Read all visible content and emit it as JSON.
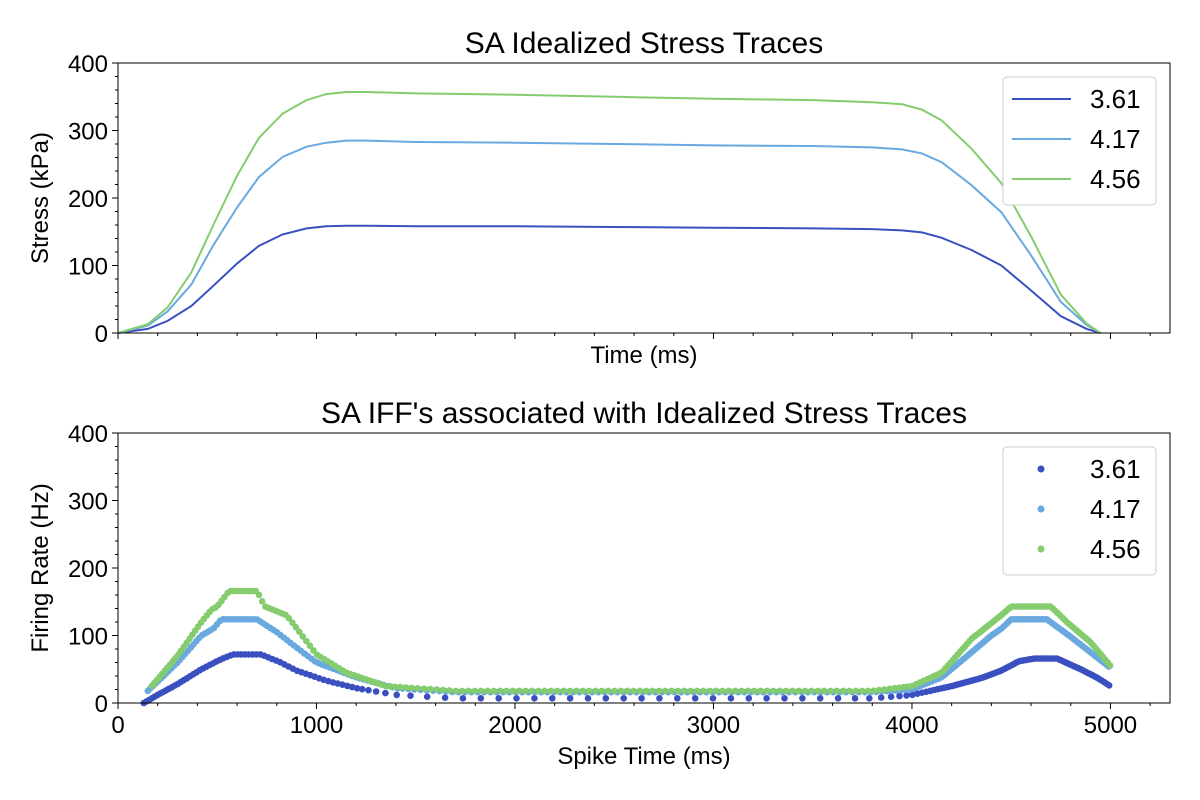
{
  "colors": {
    "s361": "#3a4fc0",
    "s417": "#6aa8e0",
    "s456": "#85cc6f"
  },
  "chart_data": [
    {
      "type": "line",
      "title": "SA Idealized Stress Traces",
      "xlabel": "Time (ms)",
      "ylabel": "Stress (kPa)",
      "xlim": [
        0,
        5300
      ],
      "ylim": [
        0,
        400
      ],
      "yticks": [
        "0",
        "100",
        "200",
        "300",
        "400"
      ],
      "x_tick_labels_shown": false,
      "legend_position": "top-right",
      "x": [
        0,
        150,
        250,
        370,
        480,
        600,
        710,
        830,
        950,
        1050,
        1150,
        1250,
        1500,
        2000,
        2500,
        3000,
        3500,
        3800,
        3950,
        4050,
        4150,
        4300,
        4450,
        4600,
        4750,
        4880,
        4950
      ],
      "series": [
        {
          "name": "3.61",
          "values": [
            0,
            6,
            18,
            40,
            70,
            103,
            129,
            146,
            155,
            158,
            159,
            159,
            158,
            158,
            157,
            156,
            155,
            154,
            152,
            149,
            141,
            123,
            100,
            63,
            25,
            6,
            0
          ]
        },
        {
          "name": "4.17",
          "values": [
            0,
            11,
            32,
            72,
            130,
            186,
            231,
            261,
            276,
            282,
            285,
            285,
            283,
            282,
            280,
            278,
            277,
            275,
            272,
            266,
            253,
            219,
            179,
            115,
            46,
            12,
            0
          ]
        },
        {
          "name": "4.56",
          "values": [
            0,
            13,
            38,
            90,
            160,
            233,
            289,
            325,
            345,
            354,
            357,
            357,
            355,
            353,
            350,
            347,
            345,
            342,
            339,
            331,
            315,
            273,
            222,
            143,
            57,
            14,
            0
          ]
        }
      ]
    },
    {
      "type": "scatter",
      "title": "SA IFF's associated with Idealized Stress Traces",
      "xlabel": "Spike Time (ms)",
      "ylabel": "Firing Rate (Hz)",
      "xlim": [
        0,
        5300
      ],
      "ylim": [
        0,
        400
      ],
      "xticks": [
        "0",
        "1000",
        "2000",
        "3000",
        "4000",
        "5000"
      ],
      "yticks": [
        "0",
        "100",
        "200",
        "300",
        "400"
      ],
      "legend_position": "top-right",
      "series": [
        {
          "name": "3.61",
          "curve": [
            [
              130,
              0
            ],
            [
              200,
              12
            ],
            [
              300,
              28
            ],
            [
              420,
              50
            ],
            [
              520,
              65
            ],
            [
              580,
              72
            ],
            [
              720,
              72
            ],
            [
              820,
              60
            ],
            [
              900,
              48
            ],
            [
              1050,
              33
            ],
            [
              1200,
              22
            ],
            [
              1400,
              12
            ],
            [
              1700,
              7
            ],
            [
              3800,
              7
            ],
            [
              4000,
              12
            ],
            [
              4200,
              25
            ],
            [
              4350,
              37
            ],
            [
              4450,
              48
            ],
            [
              4540,
              62
            ],
            [
              4620,
              66
            ],
            [
              4730,
              66
            ],
            [
              4850,
              50
            ],
            [
              4930,
              38
            ],
            [
              5000,
              25
            ]
          ],
          "spacing": [
            [
              0,
              12
            ],
            [
              1200,
              25
            ],
            [
              1500,
              90
            ],
            [
              3600,
              90
            ],
            [
              4000,
              25
            ],
            [
              4200,
              12
            ],
            [
              5000,
              12
            ]
          ]
        },
        {
          "name": "4.17",
          "curve": [
            [
              150,
              18
            ],
            [
              300,
              60
            ],
            [
              420,
              100
            ],
            [
              480,
              110
            ],
            [
              520,
              124
            ],
            [
              700,
              124
            ],
            [
              800,
              105
            ],
            [
              900,
              82
            ],
            [
              1000,
              60
            ],
            [
              1200,
              38
            ],
            [
              1400,
              22
            ],
            [
              1700,
              16
            ],
            [
              3800,
              16
            ],
            [
              4000,
              20
            ],
            [
              4150,
              38
            ],
            [
              4300,
              75
            ],
            [
              4400,
              100
            ],
            [
              4450,
              110
            ],
            [
              4500,
              124
            ],
            [
              4680,
              124
            ],
            [
              4800,
              98
            ],
            [
              4900,
              75
            ],
            [
              5000,
              52
            ]
          ],
          "spacing": [
            [
              0,
              12
            ],
            [
              1300,
              20
            ],
            [
              1500,
              32
            ],
            [
              3700,
              32
            ],
            [
              4000,
              20
            ],
            [
              4200,
              12
            ],
            [
              5000,
              12
            ]
          ]
        },
        {
          "name": "4.56",
          "curve": [
            [
              170,
              25
            ],
            [
              300,
              70
            ],
            [
              420,
              120
            ],
            [
              470,
              138
            ],
            [
              500,
              143
            ],
            [
              560,
              166
            ],
            [
              700,
              166
            ],
            [
              740,
              143
            ],
            [
              850,
              130
            ],
            [
              1000,
              72
            ],
            [
              1150,
              45
            ],
            [
              1350,
              25
            ],
            [
              1700,
              18
            ],
            [
              3800,
              18
            ],
            [
              4000,
              25
            ],
            [
              4150,
              45
            ],
            [
              4300,
              95
            ],
            [
              4450,
              130
            ],
            [
              4500,
              143
            ],
            [
              4700,
              143
            ],
            [
              4780,
              120
            ],
            [
              4900,
              90
            ],
            [
              5000,
              55
            ]
          ],
          "spacing": [
            [
              0,
              12
            ],
            [
              1300,
              20
            ],
            [
              1500,
              32
            ],
            [
              3700,
              32
            ],
            [
              4000,
              20
            ],
            [
              4200,
              12
            ],
            [
              5000,
              12
            ]
          ]
        }
      ]
    }
  ]
}
